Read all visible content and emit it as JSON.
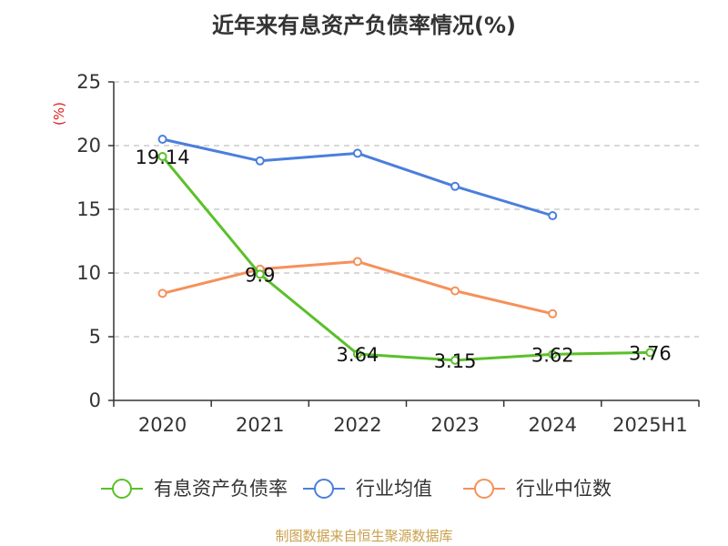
{
  "chart_data": {
    "type": "line",
    "title": "近年来有息资产负债率情况(%)",
    "ylabel": "(%)",
    "categories": [
      "2020",
      "2021",
      "2022",
      "2023",
      "2024",
      "2025H1"
    ],
    "ylim": [
      0,
      25
    ],
    "yticks": [
      0,
      5,
      10,
      15,
      20,
      25
    ],
    "grid": true,
    "legend": "bottom",
    "series": [
      {
        "name": "有息资产负债率",
        "color": "#5ac02a",
        "labels": true,
        "values": [
          19.14,
          9.9,
          3.64,
          3.15,
          3.62,
          3.76
        ],
        "label_text": [
          "19.14",
          "9.9",
          "3.64",
          "3.15",
          "3.62",
          "3.76"
        ]
      },
      {
        "name": "行业均值",
        "color": "#4a7fdc",
        "labels": false,
        "values": [
          20.5,
          18.8,
          19.4,
          16.8,
          14.5,
          null
        ]
      },
      {
        "name": "行业中位数",
        "color": "#f5915a",
        "labels": false,
        "values": [
          8.4,
          10.3,
          10.9,
          8.6,
          6.8,
          null
        ]
      }
    ]
  },
  "source": "制图数据来自恒生聚源数据库"
}
